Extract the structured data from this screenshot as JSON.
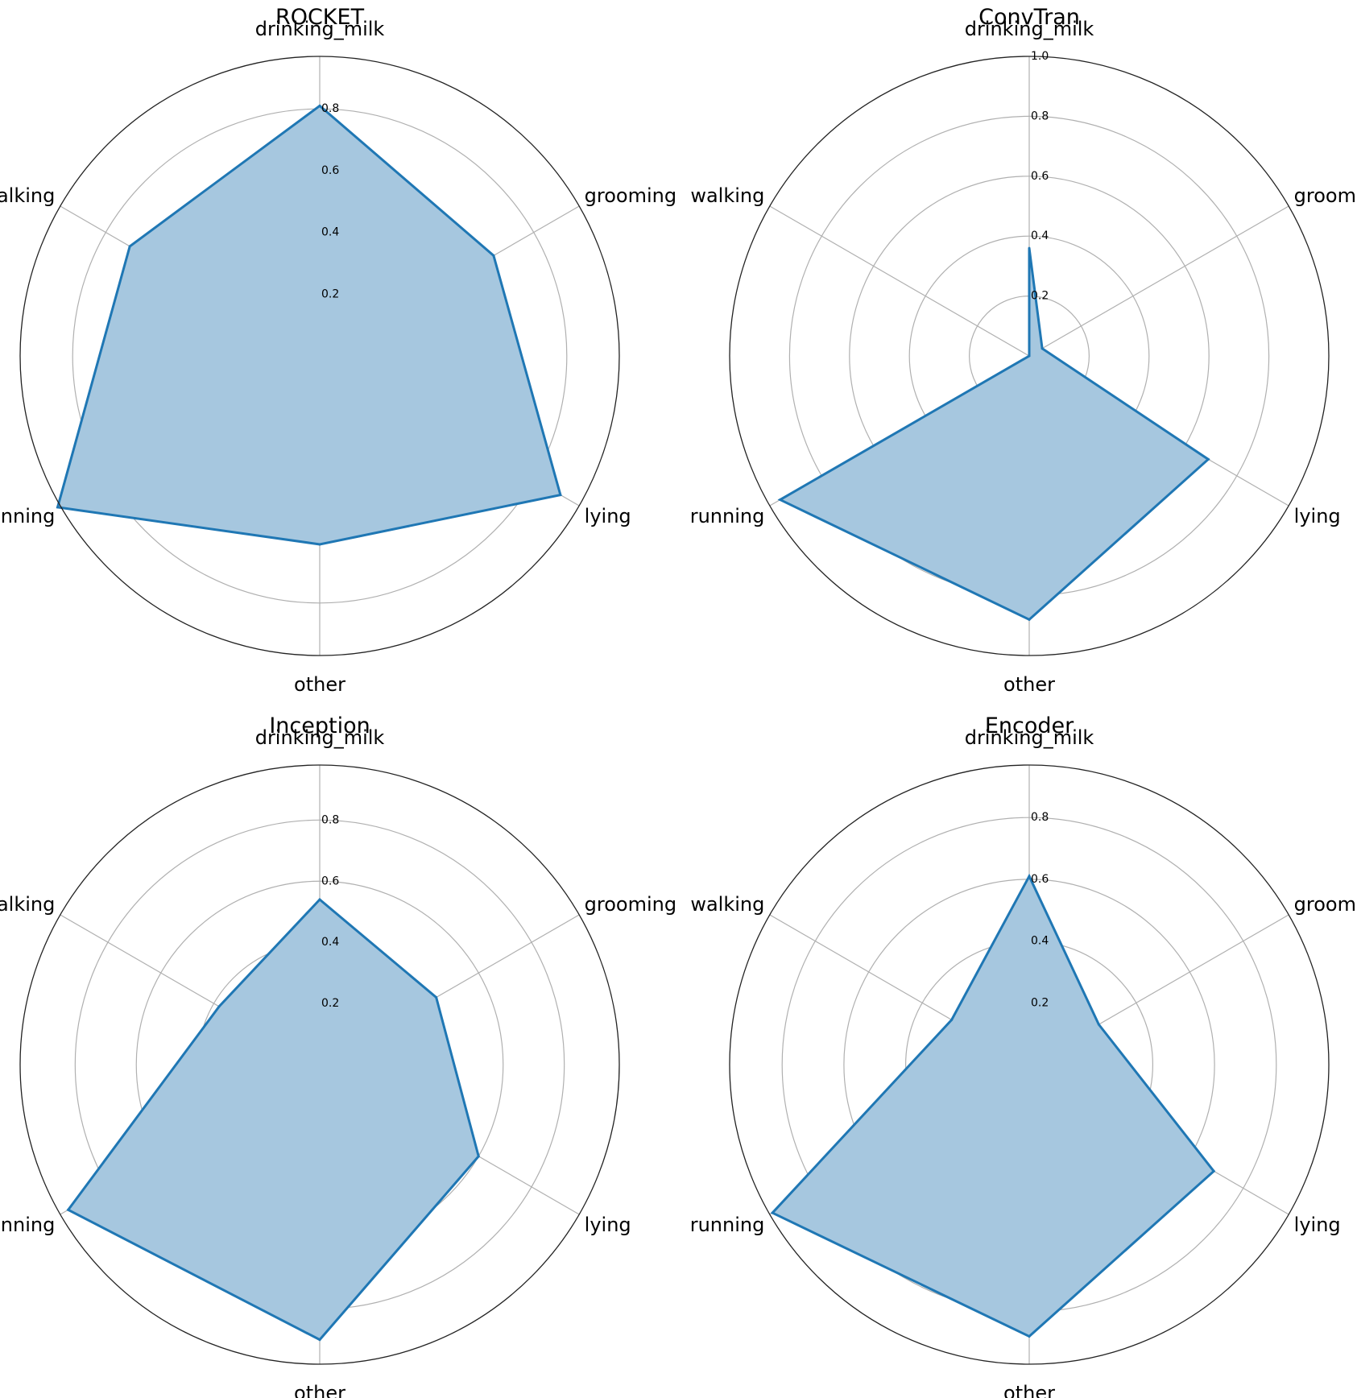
{
  "figure": {
    "series_color": "#1f77b4",
    "fill_color": "#a6c7df",
    "grid_color": "#b0b0b0",
    "frame_color": "#222222"
  },
  "chart_data": [
    {
      "type": "radar",
      "title": "ROCKET",
      "categories": [
        "drinking_milk",
        "grooming",
        "lying",
        "other",
        "running",
        "walking"
      ],
      "values": [
        0.81,
        0.65,
        0.9,
        0.61,
        0.98,
        0.71
      ],
      "rmax": 0.97,
      "rticks": [
        0.2,
        0.4,
        0.6,
        0.8
      ],
      "rtick_labels": [
        "0.2",
        "0.4",
        "0.6",
        "0.8"
      ]
    },
    {
      "type": "radar",
      "title": "ConvTran",
      "categories": [
        "drinking_milk",
        "grooming",
        "lying",
        "other",
        "running",
        "walking"
      ],
      "values": [
        0.36,
        0.05,
        0.69,
        0.88,
        0.96,
        0.0
      ],
      "rmax": 1.0,
      "rticks": [
        0.2,
        0.4,
        0.6,
        0.8,
        1.0
      ],
      "rtick_labels": [
        "0.2",
        "0.4",
        "0.6",
        "0.8",
        "1.0"
      ]
    },
    {
      "type": "radar",
      "title": "Inception",
      "categories": [
        "drinking_milk",
        "grooming",
        "lying",
        "other",
        "running",
        "walking"
      ],
      "values": [
        0.54,
        0.44,
        0.6,
        0.9,
        0.95,
        0.38
      ],
      "rmax": 0.98,
      "rticks": [
        0.2,
        0.4,
        0.6,
        0.8
      ],
      "rtick_labels": [
        "0.2",
        "0.4",
        "0.6",
        "0.8"
      ]
    },
    {
      "type": "radar",
      "title": "Encoder",
      "categories": [
        "drinking_milk",
        "grooming",
        "lying",
        "other",
        "running",
        "walking"
      ],
      "values": [
        0.61,
        0.26,
        0.69,
        0.88,
        0.96,
        0.29
      ],
      "rmax": 0.97,
      "rticks": [
        0.2,
        0.4,
        0.6,
        0.8
      ],
      "rtick_labels": [
        "0.2",
        "0.4",
        "0.6",
        "0.8"
      ]
    }
  ]
}
